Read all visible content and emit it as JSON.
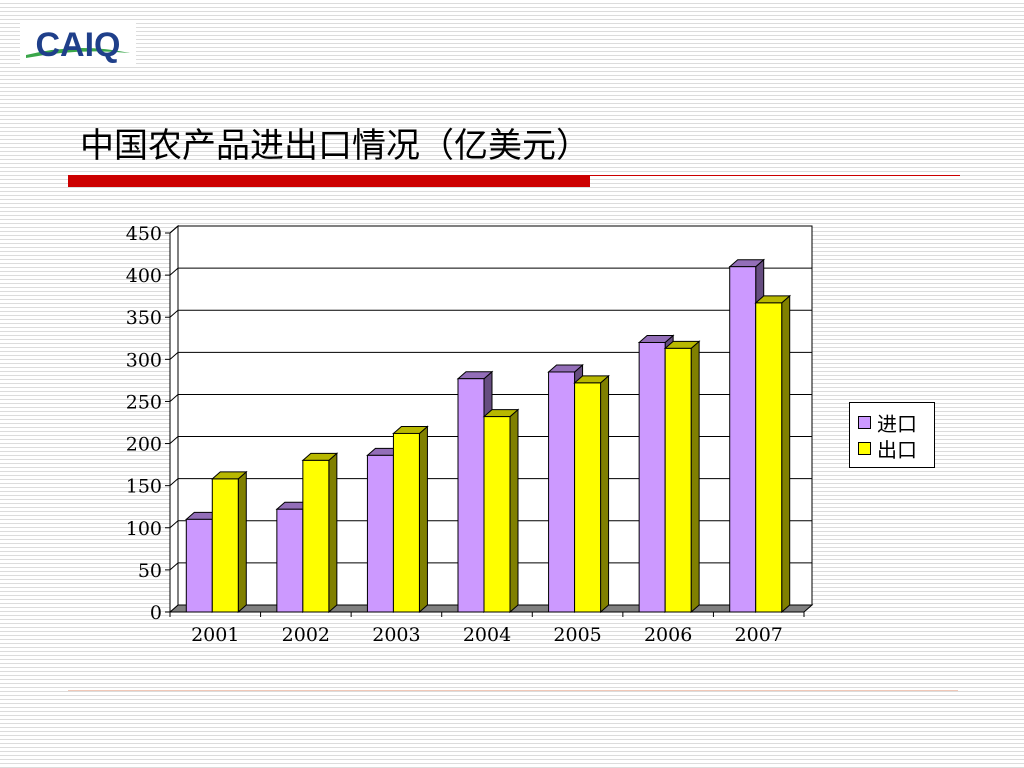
{
  "logo": {
    "text": "CAIQ",
    "colors": {
      "text": "#1f3f8a",
      "swoosh": "#3aa64a"
    }
  },
  "title": "中国农产品进出口情况（亿美元）",
  "chart_data": {
    "type": "bar",
    "categories": [
      "2001",
      "2002",
      "2003",
      "2004",
      "2005",
      "2006",
      "2007"
    ],
    "series": [
      {
        "name": "进口",
        "color": "#cc99ff",
        "values": [
          110,
          122,
          186,
          277,
          285,
          320,
          410
        ]
      },
      {
        "name": "出口",
        "color": "#ffff00",
        "values": [
          158,
          180,
          212,
          232,
          272,
          313,
          367
        ]
      }
    ],
    "ylim": [
      0,
      450
    ],
    "yticks": [
      0,
      50,
      100,
      150,
      200,
      250,
      300,
      350,
      400,
      450
    ],
    "title": "",
    "xlabel": "",
    "ylabel": "",
    "grid": true,
    "legend": "right",
    "style": "3d-clustered"
  }
}
